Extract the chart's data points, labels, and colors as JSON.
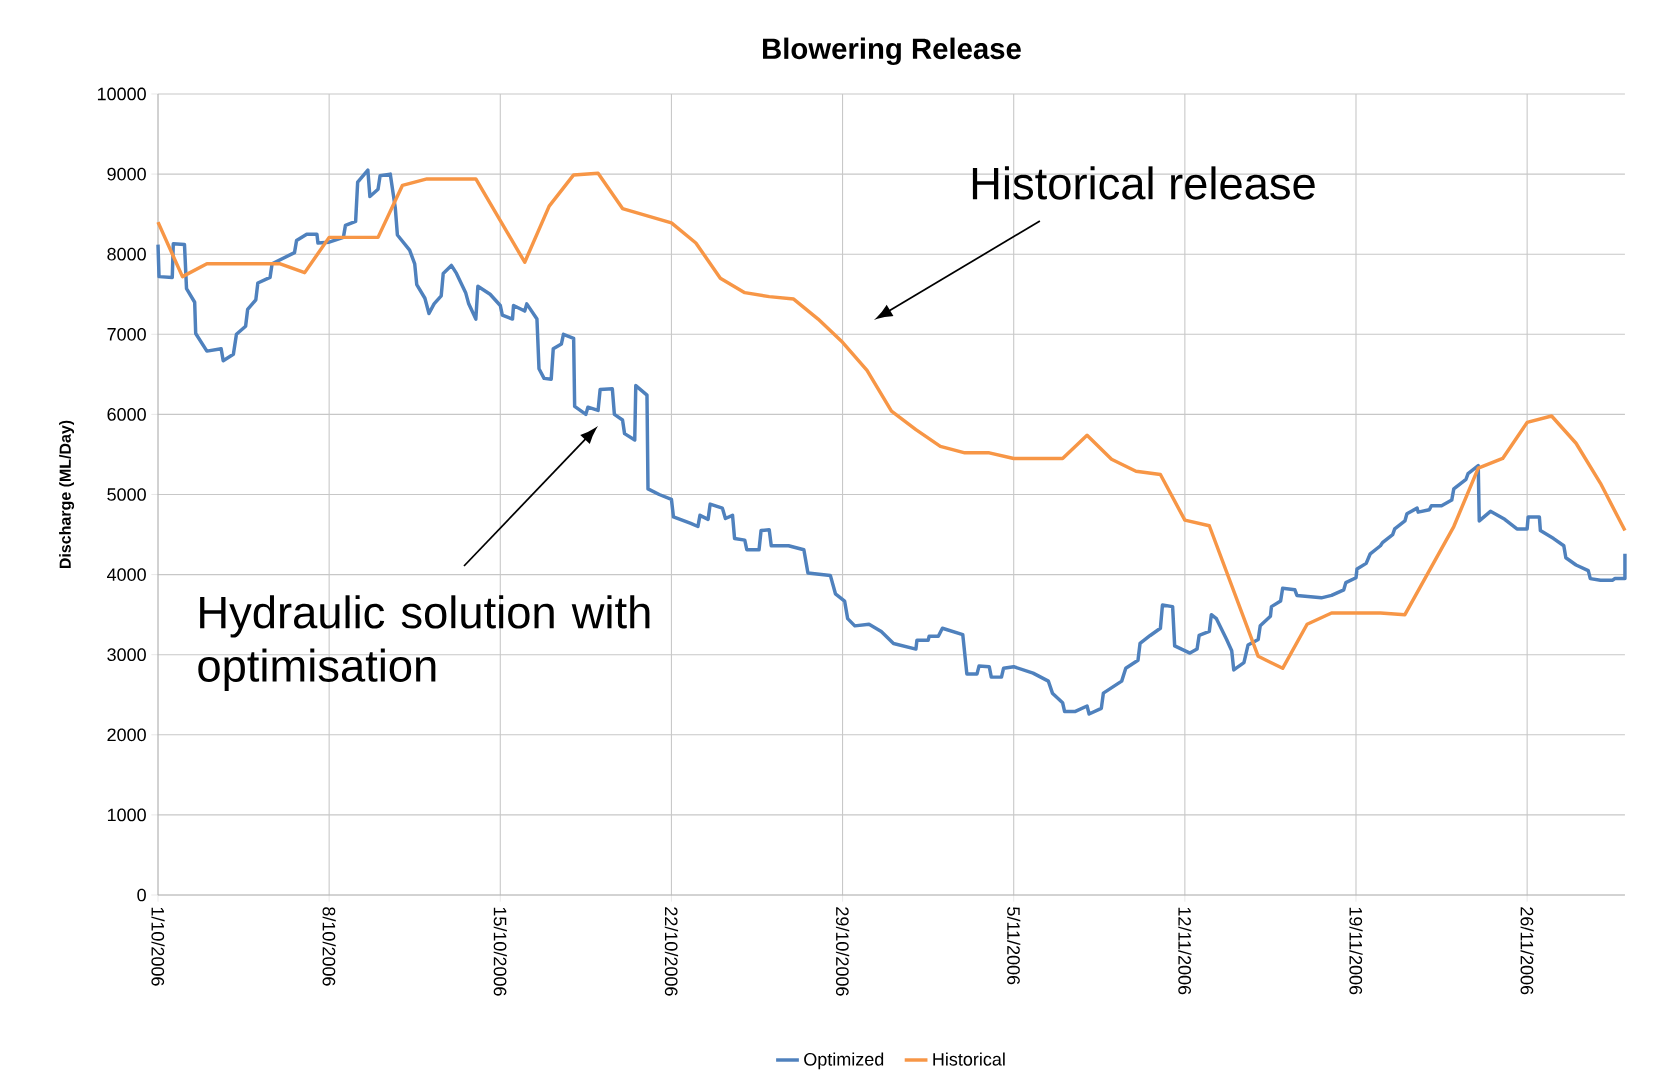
{
  "chart_data": {
    "type": "line",
    "title": "Blowering Release",
    "ylabel": "Discharge (ML/Day)",
    "xlim": [
      "2006-10-01",
      "2006-11-30"
    ],
    "xticks": [
      {
        "value": "2006-10-01",
        "label": "1/10/2006"
      },
      {
        "value": "2006-10-08",
        "label": "8/10/2006"
      },
      {
        "value": "2006-10-15",
        "label": "15/10/2006"
      },
      {
        "value": "2006-10-22",
        "label": "22/10/2006"
      },
      {
        "value": "2006-10-29",
        "label": "29/10/2006"
      },
      {
        "value": "2006-11-05",
        "label": "5/11/2006"
      },
      {
        "value": "2006-11-12",
        "label": "12/11/2006"
      },
      {
        "value": "2006-11-19",
        "label": "19/11/2006"
      },
      {
        "value": "2006-11-26",
        "label": "26/11/2006"
      }
    ],
    "ylim": [
      0,
      10000
    ],
    "yticks": [
      0,
      1000,
      2000,
      3000,
      4000,
      5000,
      6000,
      7000,
      8000,
      9000,
      10000
    ],
    "grid": true,
    "legend": "bottom",
    "marker": "none",
    "line_style": "solid",
    "annotations": [
      "Hydraulic solution with optimisation",
      "Historical release"
    ],
    "series": [
      {
        "name": "Optimized",
        "color": "#4f81bd",
        "x": [
          "2006-10-01T00:00",
          "2006-10-01T01:00",
          "2006-10-01T14:00",
          "2006-10-01T15:00",
          "2006-10-02T02:00",
          "2006-10-02T04:00",
          "2006-10-02T12:00",
          "2006-10-02T13:00",
          "2006-10-03T00:00",
          "2006-10-03T14:00",
          "2006-10-03T16:00",
          "2006-10-04T02:00",
          "2006-10-04T05:00",
          "2006-10-04T14:00",
          "2006-10-04T16:00",
          "2006-10-05T00:00",
          "2006-10-05T02:00",
          "2006-10-05T14:00",
          "2006-10-05T16:00",
          "2006-10-06T14:00",
          "2006-10-06T16:00",
          "2006-10-07T02:00",
          "2006-10-07T12:00",
          "2006-10-07T13:00",
          "2006-10-08T00:00",
          "2006-10-08T14:00",
          "2006-10-08T16:00",
          "2006-10-09T02:00",
          "2006-10-09T04:00",
          "2006-10-09T14:00",
          "2006-10-09T16:00",
          "2006-10-10T00:00",
          "2006-10-10T02:00",
          "2006-10-10T12:00",
          "2006-10-10T17:00",
          "2006-10-10T19:00",
          "2006-10-11T07:00",
          "2006-10-11T12:00",
          "2006-10-11T14:00",
          "2006-10-11T22:00",
          "2006-10-12T02:00",
          "2006-10-12T07:00",
          "2006-10-12T14:00",
          "2006-10-12T16:00",
          "2006-10-13T00:00",
          "2006-10-13T05:00",
          "2006-10-13T14:00",
          "2006-10-13T17:00",
          "2006-10-14T00:00",
          "2006-10-14T02:00",
          "2006-10-14T14:00",
          "2006-10-15T00:00",
          "2006-10-15T02:00",
          "2006-10-15T12:00",
          "2006-10-15T13:00",
          "2006-10-16T00:00",
          "2006-10-16T02:00",
          "2006-10-16T12:00",
          "2006-10-16T14:00",
          "2006-10-16T19:00",
          "2006-10-17T02:00",
          "2006-10-17T04:00",
          "2006-10-17T12:00",
          "2006-10-17T14:00",
          "2006-10-18T00:00",
          "2006-10-18T01:00",
          "2006-10-18T12:00",
          "2006-10-18T14:00",
          "2006-10-19T00:00",
          "2006-10-19T02:00",
          "2006-10-19T14:00",
          "2006-10-19T16:00",
          "2006-10-20T00:00",
          "2006-10-20T02:00",
          "2006-10-20T12:00",
          "2006-10-20T13:00",
          "2006-10-21T00:00",
          "2006-10-21T01:00",
          "2006-10-21T12:00",
          "2006-10-22T00:00",
          "2006-10-22T02:00",
          "2006-10-22T19:00",
          "2006-10-23T02:00",
          "2006-10-23T04:00",
          "2006-10-23T12:00",
          "2006-10-23T14:00",
          "2006-10-24T02:00",
          "2006-10-24T05:00",
          "2006-10-24T12:00",
          "2006-10-24T14:00",
          "2006-10-25T00:00",
          "2006-10-25T02:00",
          "2006-10-25T14:00",
          "2006-10-25T16:00",
          "2006-10-26T00:00",
          "2006-10-26T02:00",
          "2006-10-26T19:00",
          "2006-10-27T10:00",
          "2006-10-27T14:00",
          "2006-10-28T12:00",
          "2006-10-28T17:00",
          "2006-10-29T02:00",
          "2006-10-29T05:00",
          "2006-10-29T12:00",
          "2006-10-30T02:00",
          "2006-10-30T14:00",
          "2006-10-31T02:00",
          "2006-11-01T00:00",
          "2006-11-01T01:00",
          "2006-11-01T12:00",
          "2006-11-01T13:00",
          "2006-11-01T22:00",
          "2006-11-02T02:00",
          "2006-11-02T22:00",
          "2006-11-03T02:00",
          "2006-11-03T12:00",
          "2006-11-03T14:00",
          "2006-11-04T00:00",
          "2006-11-04T02:00",
          "2006-11-04T12:00",
          "2006-11-04T14:00",
          "2006-11-05T00:00",
          "2006-11-05T19:00",
          "2006-11-06T10:00",
          "2006-11-06T14:00",
          "2006-11-07T00:00",
          "2006-11-07T02:00",
          "2006-11-07T12:00",
          "2006-11-08T00:00",
          "2006-11-08T02:00",
          "2006-11-08T14:00",
          "2006-11-08T16:00",
          "2006-11-09T10:00",
          "2006-11-09T14:00",
          "2006-11-10T02:00",
          "2006-11-10T04:00",
          "2006-11-10T14:00",
          "2006-11-11T00:00",
          "2006-11-11T02:00",
          "2006-11-11T12:00",
          "2006-11-11T14:00",
          "2006-11-12T05:00",
          "2006-11-12T12:00",
          "2006-11-12T14:00",
          "2006-11-13T00:00",
          "2006-11-13T02:00",
          "2006-11-13T07:00",
          "2006-11-13T17:00",
          "2006-11-13T22:00",
          "2006-11-14T00:00",
          "2006-11-14T10:00",
          "2006-11-14T14:00",
          "2006-11-15T00:00",
          "2006-11-15T02:00",
          "2006-11-15T12:00",
          "2006-11-15T13:00",
          "2006-11-15T22:00",
          "2006-11-16T00:00",
          "2006-11-16T12:00",
          "2006-11-16T14:00",
          "2006-11-17T14:00",
          "2006-11-18T00:00",
          "2006-11-18T12:00",
          "2006-11-18T14:00",
          "2006-11-19T00:00",
          "2006-11-19T01:00",
          "2006-11-19T10:00",
          "2006-11-19T14:00",
          "2006-11-20T00:00",
          "2006-11-20T02:00",
          "2006-11-20T12:00",
          "2006-11-20T14:00",
          "2006-11-21T00:00",
          "2006-11-21T02:00",
          "2006-11-21T12:00",
          "2006-11-21T13:00",
          "2006-11-22T00:00",
          "2006-11-22T02:00",
          "2006-11-22T12:00",
          "2006-11-22T22:00",
          "2006-11-23T00:00",
          "2006-11-23T12:00",
          "2006-11-23T14:00",
          "2006-11-24T00:00",
          "2006-11-24T01:00",
          "2006-11-24T12:00",
          "2006-11-25T02:00",
          "2006-11-25T14:00",
          "2006-11-26T00:00",
          "2006-11-26T01:00",
          "2006-11-26T12:00",
          "2006-11-26T13:00",
          "2006-11-27T02:00",
          "2006-11-27T12:00",
          "2006-11-27T14:00",
          "2006-11-28T00:00",
          "2006-11-28T12:00",
          "2006-11-28T14:00",
          "2006-11-29T00:00",
          "2006-11-29T12:00",
          "2006-11-29T14:00",
          "2006-11-30T00:00",
          "2006-11-30T00:00"
        ],
        "values": [
          8120,
          7720,
          7710,
          8130,
          8120,
          7570,
          7400,
          7010,
          6790,
          6820,
          6670,
          6750,
          7000,
          7100,
          7310,
          7430,
          7640,
          7710,
          7880,
          8020,
          8170,
          8250,
          8250,
          8140,
          8150,
          8210,
          8360,
          8410,
          8900,
          9050,
          8720,
          8810,
          8980,
          9000,
          8570,
          8240,
          8050,
          7880,
          7620,
          7450,
          7260,
          7380,
          7480,
          7760,
          7860,
          7760,
          7520,
          7380,
          7190,
          7600,
          7500,
          7360,
          7240,
          7190,
          7360,
          7290,
          7380,
          7190,
          6570,
          6450,
          6440,
          6820,
          6880,
          7000,
          6950,
          6100,
          6000,
          6090,
          6050,
          6310,
          6320,
          6000,
          5930,
          5760,
          5680,
          6360,
          6240,
          5070,
          5000,
          4940,
          4720,
          4640,
          4600,
          4740,
          4690,
          4880,
          4830,
          4700,
          4740,
          4450,
          4430,
          4310,
          4310,
          4550,
          4560,
          4360,
          4360,
          4310,
          4020,
          3990,
          3760,
          3670,
          3450,
          3360,
          3380,
          3290,
          3140,
          3070,
          3180,
          3180,
          3230,
          3230,
          3330,
          3250,
          2760,
          2760,
          2860,
          2850,
          2720,
          2720,
          2830,
          2850,
          2770,
          2670,
          2520,
          2400,
          2290,
          2290,
          2360,
          2260,
          2330,
          2520,
          2670,
          2830,
          2930,
          3140,
          3240,
          3330,
          3620,
          3600,
          3110,
          3020,
          3070,
          3240,
          3290,
          3500,
          3450,
          3190,
          3050,
          2810,
          2900,
          3120,
          3190,
          3360,
          3480,
          3600,
          3670,
          3830,
          3810,
          3740,
          3710,
          3740,
          3810,
          3900,
          3960,
          4070,
          4140,
          4260,
          4360,
          4400,
          4500,
          4570,
          4670,
          4760,
          4830,
          4780,
          4810,
          4860,
          4860,
          4930,
          5070,
          5190,
          5260,
          5360,
          4670,
          4790,
          4690,
          4570,
          4570,
          4720,
          4720,
          4550,
          4450,
          4360,
          4210,
          4120,
          4050,
          3950,
          3930,
          3930,
          3950,
          3950,
          4260
        ]
      },
      {
        "name": "Historical",
        "color": "#f79646",
        "x": [
          "2006-10-01",
          "2006-10-02",
          "2006-10-03",
          "2006-10-06",
          "2006-10-07",
          "2006-10-08",
          "2006-10-10",
          "2006-10-11",
          "2006-10-12",
          "2006-10-14",
          "2006-10-16",
          "2006-10-17",
          "2006-10-18",
          "2006-10-19",
          "2006-10-20",
          "2006-10-22",
          "2006-10-23",
          "2006-10-24",
          "2006-10-25",
          "2006-10-26",
          "2006-10-27",
          "2006-10-28",
          "2006-10-29",
          "2006-10-30",
          "2006-10-31",
          "2006-11-01",
          "2006-11-02",
          "2006-11-03",
          "2006-11-04",
          "2006-11-05",
          "2006-11-07",
          "2006-11-08",
          "2006-11-09",
          "2006-11-10",
          "2006-11-11",
          "2006-11-12",
          "2006-11-13",
          "2006-11-15",
          "2006-11-16",
          "2006-11-17",
          "2006-11-18",
          "2006-11-20",
          "2006-11-21",
          "2006-11-23",
          "2006-11-24",
          "2006-11-25",
          "2006-11-26",
          "2006-11-27",
          "2006-11-28",
          "2006-11-29",
          "2006-11-30"
        ],
        "values": [
          8400,
          7720,
          7880,
          7880,
          7770,
          8210,
          8210,
          8860,
          8940,
          8940,
          7900,
          8600,
          8990,
          9010,
          8570,
          8390,
          8140,
          7700,
          7520,
          7470,
          7440,
          7190,
          6900,
          6550,
          6040,
          5810,
          5600,
          5520,
          5520,
          5450,
          5450,
          5740,
          5440,
          5290,
          5250,
          4680,
          4610,
          2980,
          2830,
          3380,
          3520,
          3520,
          3500,
          4600,
          5330,
          5450,
          5900,
          5980,
          5640,
          5140,
          4550
        ]
      }
    ]
  }
}
